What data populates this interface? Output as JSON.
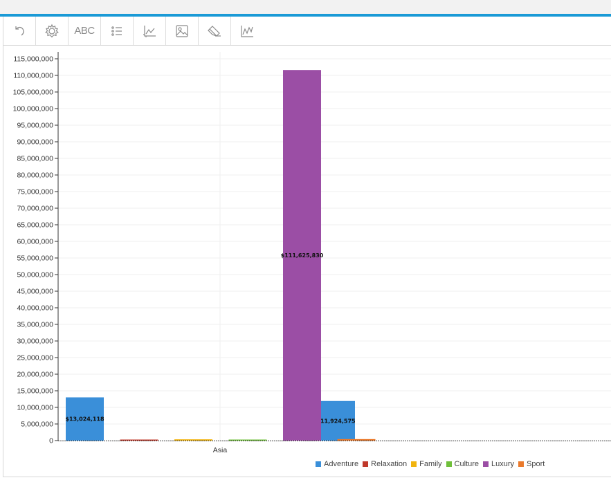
{
  "toolbar": {
    "tools": [
      {
        "name": "undo-icon"
      },
      {
        "name": "gear-icon"
      },
      {
        "name": "text-abc-icon",
        "label": "ABC"
      },
      {
        "name": "list-icon"
      },
      {
        "name": "axis-chart-icon"
      },
      {
        "name": "image-icon"
      },
      {
        "name": "eraser-icon"
      },
      {
        "name": "line-chart-icon"
      }
    ]
  },
  "chart_data": {
    "type": "bar",
    "title": "",
    "xlabel": "",
    "ylabel": "",
    "ylim": [
      0,
      115000000
    ],
    "ytick_step": 5000000,
    "grid": true,
    "legend_position": "bottom-right",
    "categories": [
      "Asia",
      ""
    ],
    "series": [
      {
        "name": "Adventure",
        "color": "#3a8fd9",
        "values": [
          13024118,
          11924575
        ],
        "labels": [
          "$13,024,118",
          "$11,924,575"
        ]
      },
      {
        "name": "Relaxation",
        "color": "#c0392b",
        "values": [
          120000,
          0
        ],
        "labels": [
          "",
          ""
        ]
      },
      {
        "name": "Family",
        "color": "#f1b40f",
        "values": [
          380000,
          0
        ],
        "labels": [
          "",
          ""
        ]
      },
      {
        "name": "Culture",
        "color": "#6fbf3a",
        "values": [
          150000,
          0
        ],
        "labels": [
          "",
          ""
        ]
      },
      {
        "name": "Luxury",
        "color": "#9b4ea5",
        "values": [
          111625830,
          0
        ],
        "labels": [
          "$111,625,830",
          ""
        ]
      },
      {
        "name": "Sport",
        "color": "#ea7a2c",
        "values": [
          450000,
          0
        ],
        "labels": [
          "",
          ""
        ]
      }
    ]
  }
}
